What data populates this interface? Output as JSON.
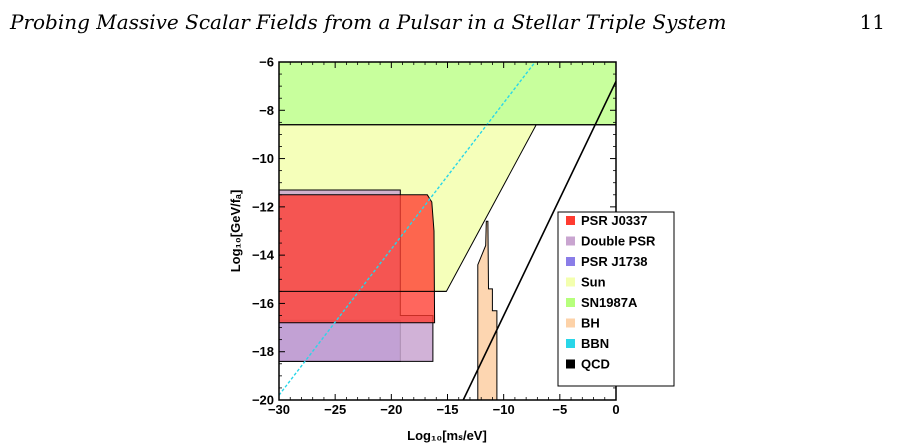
{
  "header": {
    "title": "Probing Massive Scalar Fields from a Pulsar in a Stellar Triple System",
    "page_number": "11"
  },
  "chart_data": {
    "type": "area",
    "xlabel": "Log₁₀[mₛ/eV]",
    "ylabel": "Log₁₀[GeV/fₐ]",
    "xlim": [
      -30,
      0
    ],
    "ylim": [
      -20,
      -6
    ],
    "xticks": [
      -30,
      -25,
      -20,
      -15,
      -10,
      -5,
      0
    ],
    "yticks": [
      -20,
      -18,
      -16,
      -14,
      -12,
      -10,
      -8,
      -6
    ],
    "legend_position": "right",
    "series": [
      {
        "name": "PSR J0337",
        "color": "#ff3b30",
        "polygon": [
          [
            -30,
            -11.5
          ],
          [
            -16.8,
            -11.5
          ],
          [
            -16.4,
            -11.8
          ],
          [
            -16.2,
            -13
          ],
          [
            -16.15,
            -16.8
          ],
          [
            -30,
            -16.8
          ]
        ]
      },
      {
        "name": "Double PSR",
        "color": "#c9a5d0",
        "polygon": [
          [
            -30,
            -11.3
          ],
          [
            -19.2,
            -11.3
          ],
          [
            -19.2,
            -16.5
          ],
          [
            -16.3,
            -16.5
          ],
          [
            -16.3,
            -18.4
          ],
          [
            -30,
            -18.4
          ]
        ]
      },
      {
        "name": "PSR J1738",
        "color": "#8a7de8",
        "polygon": [
          [
            -30,
            -16.7
          ],
          [
            -19.2,
            -16.7
          ],
          [
            -19.2,
            -18.4
          ],
          [
            -30,
            -18.4
          ]
        ]
      },
      {
        "name": "Sun",
        "color": "#f3ffae",
        "polygon": [
          [
            -30,
            -8.6
          ],
          [
            0,
            -8.6
          ],
          [
            -7.1,
            -8.6
          ],
          [
            -15.1,
            -15.5
          ],
          [
            -30,
            -15.5
          ]
        ]
      },
      {
        "name": "SN1987A",
        "color": "#b6ff7c",
        "polygon": [
          [
            -30,
            -6
          ],
          [
            0,
            -6
          ],
          [
            0,
            -8.6
          ],
          [
            -30,
            -8.6
          ]
        ]
      },
      {
        "name": "BH",
        "color": "#fdd2a8",
        "polygon": [
          [
            -12.3,
            -20
          ],
          [
            -12.3,
            -14.4
          ],
          [
            -11.6,
            -13.6
          ],
          [
            -11.55,
            -12.6
          ],
          [
            -11.4,
            -12.6
          ],
          [
            -11.35,
            -15.4
          ],
          [
            -11.0,
            -15.4
          ],
          [
            -11.0,
            -16.3
          ],
          [
            -10.6,
            -16.3
          ],
          [
            -10.6,
            -20
          ]
        ]
      },
      {
        "name": "BBN",
        "color": "#29d6e8",
        "line": [
          [
            -30,
            -19.8
          ],
          [
            -7.2,
            -6
          ]
        ]
      },
      {
        "name": "QCD",
        "color": "#000000",
        "line": [
          [
            -13.6,
            -20
          ],
          [
            0,
            -6.8
          ]
        ]
      }
    ]
  }
}
